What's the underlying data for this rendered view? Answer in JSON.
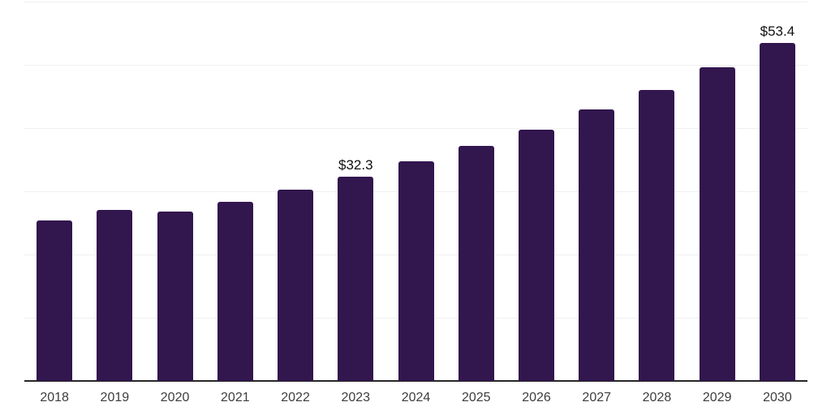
{
  "chart_data": {
    "type": "bar",
    "title": "",
    "xlabel": "",
    "ylabel": "",
    "categories": [
      "2018",
      "2019",
      "2020",
      "2021",
      "2022",
      "2023",
      "2024",
      "2025",
      "2026",
      "2027",
      "2028",
      "2029",
      "2030"
    ],
    "values": [
      25.4,
      27.0,
      26.8,
      28.3,
      30.2,
      32.3,
      34.7,
      37.2,
      39.8,
      42.9,
      46.0,
      49.6,
      53.4
    ],
    "point_labels": [
      "",
      "",
      "",
      "",
      "",
      "$32.3",
      "",
      "",
      "",
      "",
      "",
      "",
      "$53.4"
    ],
    "value_prefix": "$",
    "ylim": [
      0,
      60
    ],
    "grid_interval": 10,
    "grid": "horizontal",
    "y_tick_labels_visible": false,
    "legend": "none"
  },
  "colors": {
    "background": "#ffffff",
    "bar": "#32164e",
    "gridline": "#f0f0f0",
    "axis_line": "#262626",
    "tick_label": "#3d3d3d",
    "value_label": "#101010"
  }
}
